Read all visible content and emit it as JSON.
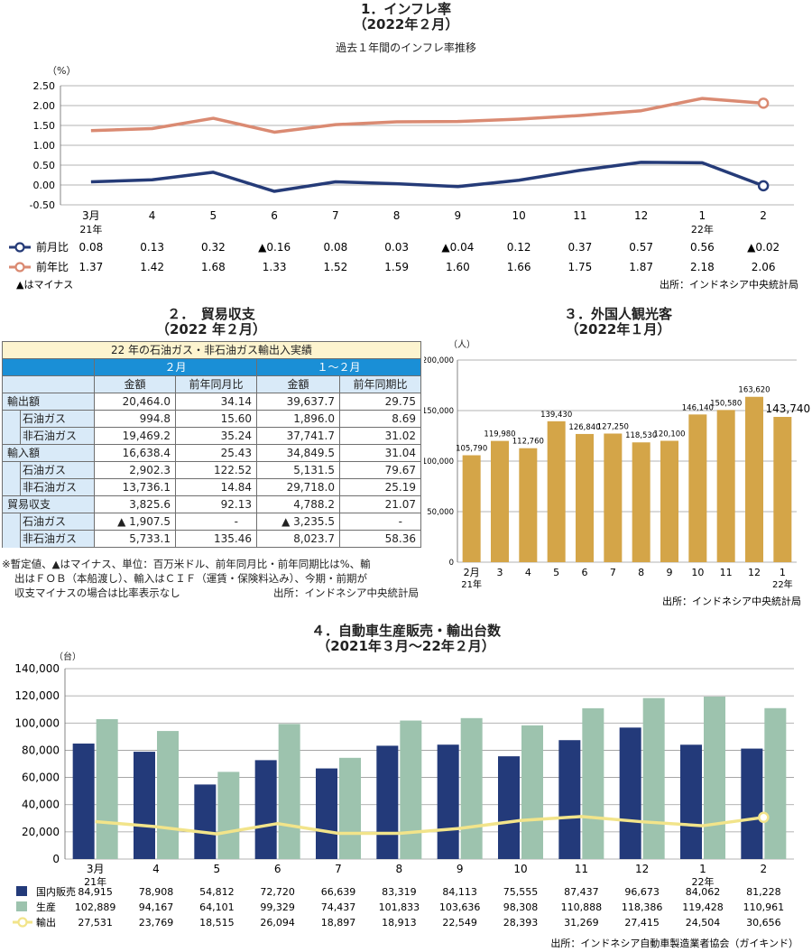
{
  "section1": {
    "title": "1．インフレ率",
    "subtitle": "（2022年２月）",
    "caption": "過去１年間のインフレ率推移",
    "y_unit": "（%）",
    "note_minus": "▲はマイナス",
    "source": "出所：インドネシア中央統計局",
    "legend_mom": "前月比",
    "legend_yoy": "前年比",
    "table_mom": [
      "0.08",
      "0.13",
      "0.32",
      "▲0.16",
      "0.08",
      "0.03",
      "▲0.04",
      "0.12",
      "0.37",
      "0.57",
      "0.56",
      "▲0.02"
    ],
    "table_yoy": [
      "1.37",
      "1.42",
      "1.68",
      "1.33",
      "1.52",
      "1.59",
      "1.60",
      "1.66",
      "1.75",
      "1.87",
      "2.18",
      "2.06"
    ]
  },
  "section2": {
    "title": "２．　貿易収支",
    "subtitle": "（2022 年２月）",
    "caption": "22 年の石油ガス・非石油ガス輸出入実績",
    "period1": "２月",
    "period2": "１～２月",
    "col_amount": "金額",
    "col_yoy1": "前年同月比",
    "col_yoy2": "前年同期比",
    "rows": [
      {
        "label": "輸出額",
        "level": 0,
        "v1": "20,464.0",
        "v2": "34.14",
        "v3": "39,637.7",
        "v4": "29.75"
      },
      {
        "label": "石油ガス",
        "level": 1,
        "v1": "994.8",
        "v2": "15.60",
        "v3": "1,896.0",
        "v4": "8.69"
      },
      {
        "label": "非石油ガス",
        "level": 1,
        "v1": "19,469.2",
        "v2": "35.24",
        "v3": "37,741.7",
        "v4": "31.02"
      },
      {
        "label": "輸入額",
        "level": 0,
        "v1": "16,638.4",
        "v2": "25.43",
        "v3": "34,849.5",
        "v4": "31.04"
      },
      {
        "label": "石油ガス",
        "level": 1,
        "v1": "2,902.3",
        "v2": "122.52",
        "v3": "5,131.5",
        "v4": "79.67"
      },
      {
        "label": "非石油ガス",
        "level": 1,
        "v1": "13,736.1",
        "v2": "14.84",
        "v3": "29,718.0",
        "v4": "25.19"
      },
      {
        "label": "貿易収支",
        "level": 0,
        "v1": "3,825.6",
        "v2": "92.13",
        "v3": "4,788.2",
        "v4": "21.07"
      },
      {
        "label": "石油ガス",
        "level": 1,
        "v1": "▲ 1,907.5",
        "v2": "-",
        "v3": "▲ 3,235.5",
        "v4": "-"
      },
      {
        "label": "非石油ガス",
        "level": 1,
        "v1": "5,733.1",
        "v2": "135.46",
        "v3": "8,023.7",
        "v4": "58.36"
      }
    ],
    "note_line1": "※暫定値、▲はマイナス、単位：百万米ドル、前年同月比・前年同期比は%、輸",
    "note_line2": "出はＦＯＢ（本船渡し）、輸入はＣＩＦ（運賃・保険料込み）、今期・前期が",
    "note_line3": "収支マイナスの場合は比率表示なし",
    "source": "出所：インドネシア中央統計局"
  },
  "section3": {
    "title": "３．外国人観光客",
    "subtitle": "（2022年１月）",
    "y_unit": "（人）",
    "source": "出所：インドネシア中央統計局"
  },
  "section4": {
    "title": "４．自動車生産販売・輸出台数",
    "subtitle": "（2021年３月～22年２月）",
    "y_unit": "（台）",
    "source": "出所：インドネシア自動車製造業者協会（ガイキンド）"
  },
  "colors": {
    "mom_line": "#253b78",
    "yoy_line": "#da8a72",
    "tourist_bar": "#d4a548",
    "domestic_bar": "#233a7a",
    "production_bar": "#9dc3ae",
    "export_line": "#f2e48a",
    "table_header": "#1a8fd6"
  },
  "chart_data": [
    {
      "type": "line",
      "title": "1．インフレ率",
      "x": [
        "3月",
        "4",
        "5",
        "6",
        "7",
        "8",
        "9",
        "10",
        "11",
        "12",
        "1",
        "2"
      ],
      "x_sub": [
        "21年",
        "",
        "",
        "",
        "",
        "",
        "",
        "",
        "",
        "",
        "22年",
        ""
      ],
      "ylim": [
        -0.5,
        2.5
      ],
      "yticks": [
        "-0.50",
        "0.00",
        "0.50",
        "1.00",
        "1.50",
        "2.00",
        "2.50"
      ],
      "grid": true,
      "series": [
        {
          "name": "前月比",
          "values": [
            0.08,
            0.13,
            0.32,
            -0.16,
            0.08,
            0.03,
            -0.04,
            0.12,
            0.37,
            0.57,
            0.56,
            -0.02
          ]
        },
        {
          "name": "前年比",
          "values": [
            1.37,
            1.42,
            1.68,
            1.33,
            1.52,
            1.59,
            1.6,
            1.66,
            1.75,
            1.87,
            2.18,
            2.06
          ]
        }
      ]
    },
    {
      "type": "bar",
      "title": "３．外国人観光客",
      "categories": [
        "2月",
        "3",
        "4",
        "5",
        "6",
        "7",
        "8",
        "9",
        "10",
        "11",
        "12",
        "1"
      ],
      "x_sub": [
        "21年",
        "",
        "",
        "",
        "",
        "",
        "",
        "",
        "",
        "",
        "",
        "22年"
      ],
      "values": [
        105790,
        119980,
        112760,
        139430,
        126840,
        127250,
        118530,
        120100,
        146140,
        150580,
        163620,
        143740
      ],
      "labels": [
        "105,790",
        "119,980",
        "112,760",
        "139,430",
        "126,840",
        "127,250",
        "118,530",
        "120,100",
        "146,140",
        "150,580",
        "163,620",
        "143,740"
      ],
      "ylim": [
        0,
        200000
      ],
      "yticks": [
        "0",
        "50,000",
        "100,000",
        "150,000",
        "200,000"
      ],
      "grid": true
    },
    {
      "type": "bar",
      "title": "４．自動車生産販売・輸出台数",
      "categories": [
        "3月",
        "4",
        "5",
        "6",
        "7",
        "8",
        "9",
        "10",
        "11",
        "12",
        "1",
        "2"
      ],
      "x_sub": [
        "21年",
        "",
        "",
        "",
        "",
        "",
        "",
        "",
        "",
        "",
        "22年",
        ""
      ],
      "ylim": [
        0,
        140000
      ],
      "yticks": [
        "0",
        "20,000",
        "40,000",
        "60,000",
        "80,000",
        "100,000",
        "120,000",
        "140,000"
      ],
      "grid": true,
      "series": [
        {
          "name": "国内販売",
          "values": [
            84915,
            78908,
            54812,
            72720,
            66639,
            83319,
            84113,
            75555,
            87437,
            96673,
            84062,
            81228
          ],
          "labels": [
            "84,915",
            "78,908",
            "54,812",
            "72,720",
            "66,639",
            "83,319",
            "84,113",
            "75,555",
            "87,437",
            "96,673",
            "84,062",
            "81,228"
          ]
        },
        {
          "name": "生産",
          "values": [
            102889,
            94167,
            64101,
            99329,
            74437,
            101833,
            103636,
            98308,
            110888,
            118386,
            119428,
            110961
          ],
          "labels": [
            "102,889",
            "94,167",
            "64,101",
            "99,329",
            "74,437",
            "101,833",
            "103,636",
            "98,308",
            "110,888",
            "118,386",
            "119,428",
            "110,961"
          ]
        },
        {
          "name": "輸出",
          "values": [
            27531,
            23769,
            18515,
            26094,
            18897,
            18913,
            22549,
            28393,
            31269,
            27415,
            24504,
            30656
          ],
          "labels": [
            "27,531",
            "23,769",
            "18,515",
            "26,094",
            "18,897",
            "18,913",
            "22,549",
            "28,393",
            "31,269",
            "27,415",
            "24,504",
            "30,656"
          ]
        }
      ]
    }
  ]
}
